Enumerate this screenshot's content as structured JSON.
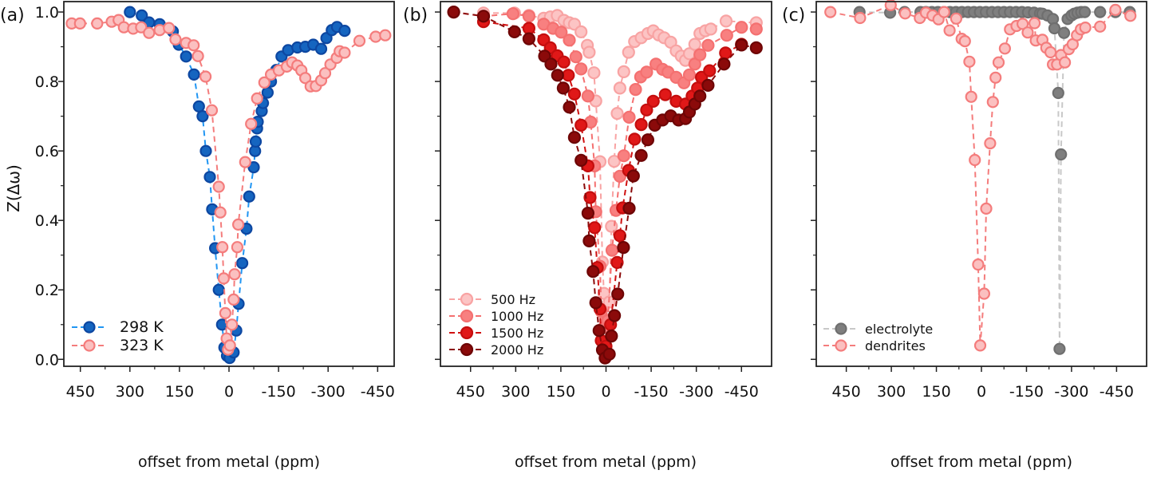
{
  "chart_data": [
    {
      "panel_label": "(a)",
      "type": "scatter",
      "xlabel": "offset from metal (ppm)",
      "ylabel": "Z(Δω)",
      "xlim": [
        500,
        -500
      ],
      "ylim": [
        -0.02,
        1.03
      ],
      "x_ticks": [
        450,
        300,
        150,
        0,
        -150,
        -300,
        -450
      ],
      "x_tick_labels": [
        "450",
        "300",
        "150",
        "0",
        "-150",
        "-300",
        "-450"
      ],
      "y_ticks": [
        0.0,
        0.2,
        0.4,
        0.6,
        0.8,
        1.0
      ],
      "y_tick_labels": [
        "0.0",
        "0.2",
        "0.4",
        "0.6",
        "0.8",
        "1.0"
      ],
      "legend": "bottom-left",
      "grid": false,
      "series": [
        {
          "name": "298 K",
          "fill": "#1565c0",
          "edge": "#0d47a1",
          "line": "#2196f3",
          "x": [
            300,
            264,
            242,
            210,
            170,
            152,
            130,
            106,
            91,
            80,
            70,
            58,
            51,
            42,
            31,
            21,
            14,
            6,
            -2,
            -14,
            -22,
            -29,
            -40,
            -53,
            -61,
            -75,
            -79,
            -81,
            -85,
            -87,
            -99,
            -103,
            -117,
            -127,
            -143,
            -159,
            -179,
            -207,
            -231,
            -255,
            -279,
            -295,
            -311,
            -327,
            -350
          ],
          "y": [
            1.0,
            0.99,
            0.97,
            0.965,
            0.944,
            0.906,
            0.872,
            0.82,
            0.728,
            0.7,
            0.6,
            0.525,
            0.432,
            0.32,
            0.2,
            0.1,
            0.034,
            0.01,
            0.004,
            0.02,
            0.083,
            0.16,
            0.277,
            0.376,
            0.469,
            0.553,
            0.6,
            0.627,
            0.665,
            0.684,
            0.715,
            0.738,
            0.768,
            0.8,
            0.833,
            0.872,
            0.89,
            0.898,
            0.9,
            0.906,
            0.894,
            0.925,
            0.948,
            0.957,
            0.946
          ]
        },
        {
          "name": "323 K",
          "fill": "#fbc0c0",
          "edge": "#f47c7c",
          "line": "#f47c7c",
          "x": [
            476,
            451,
            399,
            355,
            334,
            318,
            290,
            266,
            242,
            210,
            182,
            162,
            130,
            107,
            94,
            71,
            52,
            31,
            26,
            20,
            16,
            11,
            7,
            3,
            -3,
            -9,
            -14,
            -17,
            -25,
            -28,
            -49,
            -67,
            -85,
            -107,
            -127,
            -151,
            -175,
            -191,
            -207,
            -219,
            -231,
            -247,
            -263,
            -279,
            -291,
            -307,
            -326,
            -335,
            -350,
            -395,
            -444,
            -473
          ],
          "y": [
            0.967,
            0.967,
            0.967,
            0.972,
            0.977,
            0.956,
            0.952,
            0.956,
            0.94,
            0.948,
            0.954,
            0.921,
            0.911,
            0.904,
            0.873,
            0.814,
            0.717,
            0.497,
            0.423,
            0.323,
            0.233,
            0.133,
            0.06,
            0.028,
            0.04,
            0.1,
            0.172,
            0.245,
            0.323,
            0.388,
            0.568,
            0.678,
            0.751,
            0.797,
            0.82,
            0.832,
            0.843,
            0.855,
            0.846,
            0.832,
            0.81,
            0.786,
            0.787,
            0.803,
            0.824,
            0.849,
            0.868,
            0.887,
            0.883,
            0.917,
            0.929,
            0.933
          ]
        }
      ]
    },
    {
      "panel_label": "(b)",
      "type": "scatter",
      "xlabel": "offset from metal (ppm)",
      "ylabel": "",
      "xlim": [
        550,
        -550
      ],
      "ylim": [
        -0.02,
        1.03
      ],
      "x_ticks": [
        450,
        300,
        150,
        0,
        -150,
        -300,
        -450
      ],
      "x_tick_labels": [
        "450",
        "300",
        "150",
        "0",
        "-150",
        "-300",
        "-450"
      ],
      "y_ticks": [
        0.0,
        0.2,
        0.4,
        0.6,
        0.8,
        1.0
      ],
      "y_tick_labels": [],
      "legend": "bottom-left",
      "grid": false,
      "series": [
        {
          "name": "500 Hz",
          "fill": "#fcc4c4",
          "edge": "#f8a3a3",
          "line": "#f8a3a3",
          "x": [
            407,
            304,
            256,
            207,
            185,
            162,
            140,
            122,
            105,
            83,
            62,
            56,
            40,
            34,
            20,
            12,
            7,
            3,
            -11,
            -18,
            -27,
            -37,
            -46,
            -59,
            -75,
            -95,
            -117,
            -139,
            -157,
            -175,
            -193,
            -215,
            -233,
            -250,
            -264,
            -277,
            -295,
            -312,
            -330,
            -348,
            -399,
            -499
          ],
          "y": [
            0.997,
            0.997,
            0.99,
            0.982,
            0.986,
            0.99,
            0.976,
            0.969,
            0.965,
            0.943,
            0.904,
            0.884,
            0.825,
            0.744,
            0.569,
            0.28,
            0.19,
            0.115,
            0.165,
            0.383,
            0.57,
            0.708,
            0.781,
            0.828,
            0.884,
            0.915,
            0.926,
            0.938,
            0.946,
            0.934,
            0.926,
            0.913,
            0.888,
            0.873,
            0.861,
            0.88,
            0.907,
            0.938,
            0.946,
            0.951,
            0.974,
            0.969
          ]
        },
        {
          "name": "1000 Hz",
          "fill": "#f88080",
          "edge": "#f47070",
          "line": "#f47070",
          "x": [
            506,
            407,
            309,
            256,
            207,
            176,
            149,
            122,
            100,
            83,
            60,
            51,
            38,
            34,
            20,
            16,
            7,
            -6,
            -20,
            -33,
            -46,
            -59,
            -77,
            -98,
            -115,
            -135,
            -166,
            -188,
            -206,
            -233,
            -259,
            -277,
            -295,
            -312,
            -339,
            -401,
            -450,
            -499
          ],
          "y": [
            1.0,
            0.988,
            0.995,
            0.988,
            0.965,
            0.953,
            0.942,
            0.919,
            0.871,
            0.836,
            0.758,
            0.683,
            0.557,
            0.425,
            0.268,
            0.138,
            0.092,
            0.111,
            0.314,
            0.429,
            0.527,
            0.586,
            0.697,
            0.777,
            0.813,
            0.827,
            0.85,
            0.835,
            0.827,
            0.812,
            0.796,
            0.819,
            0.85,
            0.877,
            0.904,
            0.933,
            0.956,
            0.951
          ]
        },
        {
          "name": "1500 Hz",
          "fill": "#e01818",
          "edge": "#c40e0e",
          "line": "#d01010",
          "x": [
            407,
            256,
            207,
            185,
            162,
            140,
            125,
            105,
            83,
            60,
            53,
            38,
            29,
            20,
            16,
            0,
            -15,
            -37,
            -46,
            -55,
            -75,
            -95,
            -117,
            -135,
            -157,
            -197,
            -233,
            -264,
            -286,
            -304,
            -317,
            -344,
            -397,
            -450
          ],
          "y": [
            0.972,
            0.953,
            0.92,
            0.897,
            0.874,
            0.856,
            0.818,
            0.764,
            0.674,
            0.557,
            0.466,
            0.379,
            0.264,
            0.145,
            0.054,
            0.038,
            0.1,
            0.279,
            0.356,
            0.436,
            0.544,
            0.634,
            0.676,
            0.718,
            0.743,
            0.762,
            0.743,
            0.735,
            0.758,
            0.781,
            0.812,
            0.831,
            0.882,
            0.907
          ]
        },
        {
          "name": "2000 Hz",
          "fill": "#8b0a0a",
          "edge": "#6d0505",
          "line": "#8b0a0a",
          "x": [
            506,
            407,
            304,
            256,
            204,
            183,
            161,
            142,
            122,
            105,
            83,
            60,
            56,
            43,
            34,
            23,
            12,
            3,
            -11,
            -18,
            -28,
            -39,
            -58,
            -77,
            -91,
            -117,
            -139,
            -162,
            -188,
            -215,
            -241,
            -264,
            -277,
            -295,
            -312,
            -339,
            -392,
            -450,
            -499
          ],
          "y": [
            1.0,
            0.988,
            0.943,
            0.923,
            0.873,
            0.85,
            0.818,
            0.781,
            0.726,
            0.639,
            0.573,
            0.421,
            0.341,
            0.253,
            0.163,
            0.083,
            0.027,
            0.004,
            0.015,
            0.067,
            0.126,
            0.188,
            0.322,
            0.435,
            0.528,
            0.587,
            0.632,
            0.674,
            0.689,
            0.701,
            0.689,
            0.693,
            0.712,
            0.735,
            0.758,
            0.789,
            0.85,
            0.905,
            0.897
          ]
        }
      ]
    },
    {
      "panel_label": "(c)",
      "type": "scatter",
      "xlabel": "offset from metal (ppm)",
      "ylabel": "",
      "xlim": [
        550,
        -550
      ],
      "ylim": [
        -0.02,
        1.03
      ],
      "x_ticks": [
        450,
        300,
        150,
        0,
        -150,
        -300,
        -450
      ],
      "x_tick_labels": [
        "450",
        "300",
        "150",
        "0",
        "-150",
        "-300",
        "-450"
      ],
      "y_ticks": [
        0.0,
        0.2,
        0.4,
        0.6,
        0.8,
        1.0
      ],
      "y_tick_labels": [],
      "legend": "bottom-left",
      "grid": false,
      "series": [
        {
          "name": "electrolyte",
          "fill": "#7f7f7f",
          "edge": "#6f6f6f",
          "line": "#c8c8c8",
          "x": [
            406,
            304,
            256,
            203,
            185,
            165,
            145,
            125,
            105,
            85,
            65,
            45,
            25,
            5,
            -15,
            -35,
            -55,
            -75,
            -95,
            -115,
            -135,
            -155,
            -175,
            -195,
            -203,
            -220,
            -238,
            -243,
            -256,
            -260,
            -265,
            -275,
            -287,
            -300,
            -309,
            -320,
            -332,
            -344,
            -395,
            -446,
            -494
          ],
          "y": [
            1.0,
            0.998,
            1.0,
            1.0,
            1.0,
            1.0,
            1.0,
            1.0,
            1.0,
            1.0,
            1.0,
            1.0,
            1.0,
            1.0,
            1.0,
            1.0,
            1.0,
            1.0,
            1.0,
            1.0,
            1.0,
            0.999,
            0.998,
            0.996,
            0.995,
            0.99,
            0.98,
            0.953,
            0.767,
            0.03,
            0.59,
            0.94,
            0.98,
            0.99,
            0.995,
            0.998,
            1.0,
            1.0,
            1.0,
            1.0,
            1.0
          ]
        },
        {
          "name": "dendrites",
          "fill": "#fbc0c0",
          "edge": "#f47c7c",
          "line": "#f47c7c",
          "x": [
            503,
            404,
            302,
            254,
            205,
            185,
            163,
            143,
            124,
            106,
            84,
            66,
            55,
            40,
            34,
            22,
            11,
            4,
            -9,
            -16,
            -29,
            -38,
            -47,
            -57,
            -78,
            -95,
            -117,
            -137,
            -154,
            -177,
            -181,
            -203,
            -216,
            -230,
            -238,
            -252,
            -265,
            -278,
            -291,
            -304,
            -318,
            -331,
            -346,
            -395,
            -446,
            -496
          ],
          "y": [
            1.0,
            0.983,
            1.02,
            0.996,
            0.983,
            0.998,
            0.99,
            0.979,
            1.0,
            0.947,
            0.981,
            0.923,
            0.916,
            0.857,
            0.756,
            0.574,
            0.273,
            0.04,
            0.189,
            0.434,
            0.622,
            0.741,
            0.811,
            0.855,
            0.895,
            0.95,
            0.96,
            0.966,
            0.941,
            0.968,
            0.918,
            0.92,
            0.897,
            0.884,
            0.849,
            0.849,
            0.876,
            0.855,
            0.893,
            0.907,
            0.933,
            0.95,
            0.955,
            0.958,
            1.006,
            0.989
          ]
        }
      ]
    }
  ]
}
